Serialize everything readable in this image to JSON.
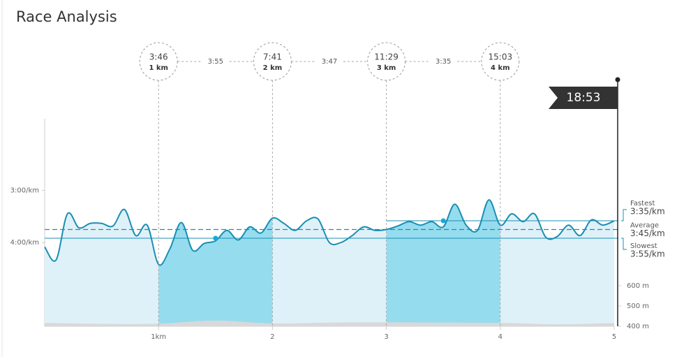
{
  "chart_data": {
    "type": "line",
    "title": "Race Analysis",
    "x": [
      0,
      0.1,
      0.2,
      0.3,
      0.4,
      0.5,
      0.6,
      0.7,
      0.8,
      0.9,
      1,
      1.1,
      1.2,
      1.3,
      1.4,
      1.5,
      1.6,
      1.7,
      1.8,
      1.9,
      2,
      2.1,
      2.2,
      2.3,
      2.4,
      2.5,
      2.6,
      2.7,
      2.8,
      2.9,
      3,
      3.1,
      3.2,
      3.3,
      3.4,
      3.5,
      3.6,
      3.7,
      3.8,
      3.9,
      4,
      4.1,
      4.2,
      4.3,
      4.4,
      4.5,
      4.6,
      4.7,
      4.8,
      4.9,
      5
    ],
    "values": [
      245,
      260,
      207,
      223,
      218,
      218,
      221,
      202,
      232,
      220,
      265,
      247,
      217,
      249,
      241,
      238,
      226,
      237,
      222,
      229,
      212,
      218,
      226,
      215,
      213,
      240,
      240,
      232,
      222,
      226,
      225,
      221,
      216,
      220,
      216,
      222,
      196,
      220,
      226,
      191,
      220,
      207,
      216,
      207,
      234,
      233,
      220,
      232,
      214,
      220,
      215
    ],
    "color": "#1a8fb3",
    "elevation": {
      "axis": "y2",
      "color": "#d9d9d9",
      "x": [
        0,
        0.5,
        1,
        1.5,
        2,
        2.5,
        3,
        3.5,
        4,
        4.5,
        5
      ],
      "values": [
        417,
        412,
        413,
        428,
        414,
        418,
        420,
        418,
        417,
        410,
        416
      ]
    },
    "xlim": [
      0,
      5
    ],
    "xticks": [
      {
        "value": 1,
        "label": "1km"
      },
      2,
      3,
      4,
      5
    ],
    "ylim": [
      336,
      98
    ],
    "yticks": [
      {
        "value": 180,
        "label": "3:00/km"
      },
      {
        "value": 240,
        "label": "4:00/km"
      }
    ],
    "y2lim": [
      400,
      1424
    ],
    "y2ticks": [
      {
        "value": 400,
        "label": "400 m"
      },
      {
        "value": 500,
        "label": "500 m"
      },
      {
        "value": 600,
        "label": "600 m"
      }
    ],
    "splits": [
      {
        "x": 1,
        "time": "3:46",
        "label": "1 km"
      },
      {
        "x": 2,
        "time": "7:41",
        "label": "2 km"
      },
      {
        "x": 3,
        "time": "11:29",
        "label": "3 km"
      },
      {
        "x": 4,
        "time": "15:03",
        "label": "4 km"
      }
    ],
    "split_paces": [
      "3:55",
      "3:47",
      "3:35"
    ],
    "finish": {
      "x": 5,
      "time": "18:53"
    },
    "reference_lines": [
      {
        "label": "Fastest",
        "value": 215,
        "value_label": "3:35/km"
      },
      {
        "label": "Average",
        "value": 225,
        "value_label": "3:45/km"
      },
      {
        "label": "Slowest",
        "value": 235,
        "value_label": "3:55/km"
      }
    ],
    "points": [
      {
        "x": 1.5,
        "value": 235
      },
      {
        "x": 3.5,
        "value": 215
      }
    ]
  }
}
